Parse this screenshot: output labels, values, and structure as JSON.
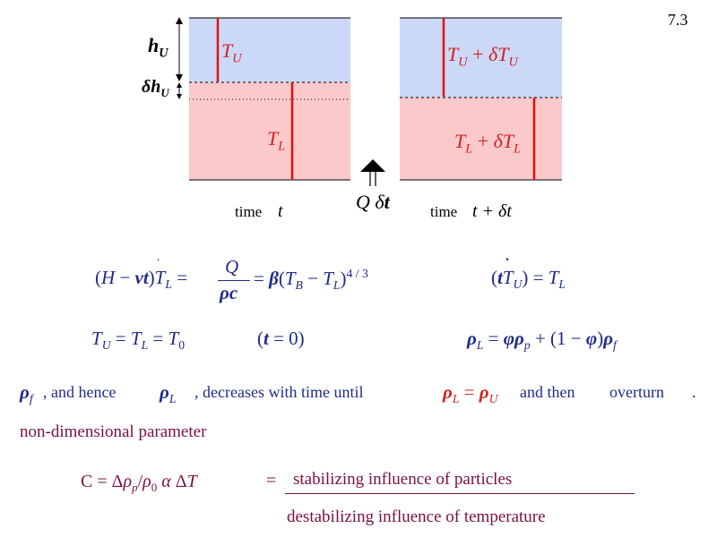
{
  "slide_number": "7.3",
  "diagram": {
    "left_panel": {
      "upper_label": "T_U",
      "lower_label": "T_L",
      "time_caption": "time",
      "time_var": "t"
    },
    "right_panel": {
      "upper_label": "T_U + δT_U",
      "lower_label": "T_L + δT_L",
      "time_caption": "time",
      "time_var": "t + δt"
    },
    "hU_label": "h_U",
    "dhU_label": "δh_U",
    "heat_label": "Q δt",
    "colors": {
      "upper_fill": "#cbd8f6",
      "lower_fill": "#fbc9c9",
      "red_line": "#e01010"
    }
  },
  "equations": {
    "eq1_left": "(H − vt)Ṫ_L =",
    "eq1_num": "Q",
    "eq1_den": "ρc",
    "eq1_right": "= β(T_B − T_L)^4/3",
    "eq2": "(tṪ_U) = T_L",
    "eq3": "T_U = T_L = T_0",
    "eq3_cond": "(t = 0)",
    "eq4": "ρ_L = φρ_p + (1 − φ)ρ_f"
  },
  "sentence": {
    "rho_f": "ρ_f",
    "part1": ", and hence",
    "rho_L": "ρ_L",
    "part2": ", decreases with time until",
    "cond": "ρ_L = ρ_U",
    "part3": "and then",
    "part4": "overturn",
    "end": "."
  },
  "param_heading": "non-dimensional parameter",
  "param_def": "C = Δρ_p/ρ_0 α ΔT",
  "equals": "=",
  "numerator_text": "stabilizing influence of particles",
  "denominator_text": "destabilizing influence of temperature"
}
